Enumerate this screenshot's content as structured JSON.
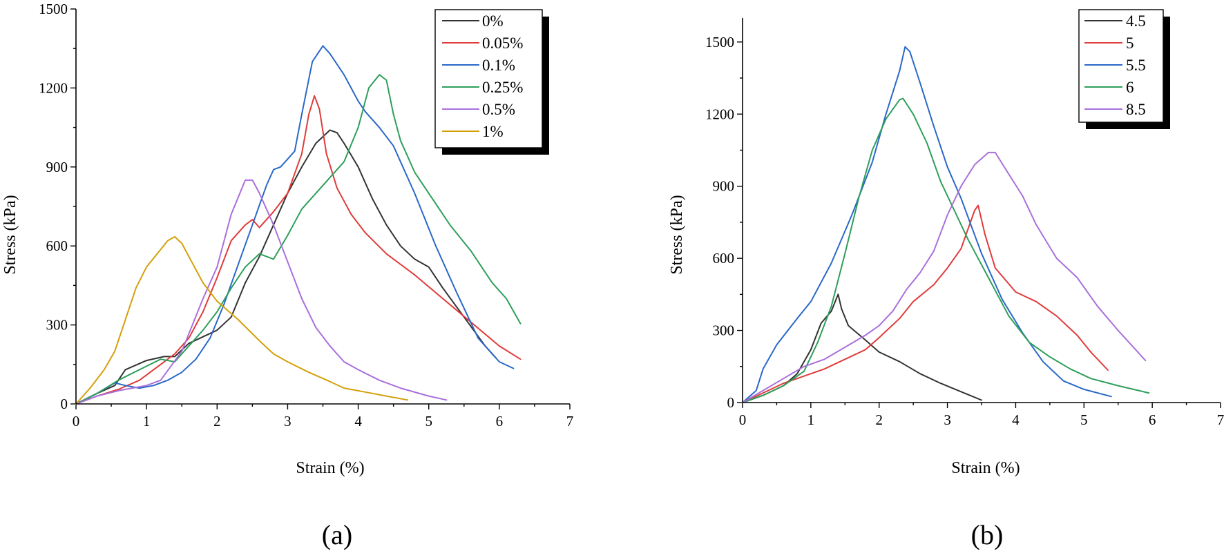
{
  "chart_data": [
    {
      "type": "line",
      "panel_label": "(a)",
      "title": "",
      "xlabel": "Strain (%)",
      "ylabel": "Stress (kPa)",
      "xlim": [
        0,
        7
      ],
      "ylim": [
        0,
        1500
      ],
      "xticks": [
        "0",
        "1",
        "2",
        "3",
        "4",
        "5",
        "6",
        "7"
      ],
      "yticks": [
        "0",
        "300",
        "600",
        "900",
        "1200",
        "1500"
      ],
      "legend_position": "top-right",
      "series": [
        {
          "name": "0%",
          "color": "#333333",
          "x": [
            0,
            0.3,
            0.55,
            0.7,
            1.0,
            1.25,
            1.4,
            1.6,
            2.0,
            2.2,
            2.4,
            2.6,
            2.8,
            3.0,
            3.2,
            3.4,
            3.6,
            3.7,
            3.8,
            4.0,
            4.2,
            4.4,
            4.6,
            4.8,
            5.0,
            5.2,
            5.5,
            5.8,
            5.95
          ],
          "y": [
            0,
            40,
            70,
            130,
            165,
            180,
            180,
            230,
            280,
            330,
            460,
            560,
            680,
            800,
            900,
            990,
            1040,
            1030,
            990,
            900,
            780,
            680,
            600,
            550,
            520,
            440,
            330,
            220,
            175
          ]
        },
        {
          "name": "0.05%",
          "color": "#e03b3b",
          "x": [
            0,
            0.3,
            0.6,
            0.9,
            1.2,
            1.4,
            1.6,
            1.8,
            2.0,
            2.2,
            2.4,
            2.5,
            2.6,
            2.8,
            3.0,
            3.2,
            3.3,
            3.38,
            3.45,
            3.55,
            3.7,
            3.9,
            4.1,
            4.4,
            4.8,
            5.2,
            5.6,
            6.0,
            6.3
          ],
          "y": [
            0,
            30,
            55,
            90,
            150,
            190,
            250,
            350,
            480,
            620,
            680,
            700,
            670,
            730,
            800,
            950,
            1100,
            1170,
            1120,
            950,
            820,
            720,
            650,
            570,
            490,
            400,
            310,
            220,
            170
          ]
        },
        {
          "name": "0.1%",
          "color": "#2a68c9",
          "x": [
            0,
            0.3,
            0.55,
            0.7,
            0.9,
            1.1,
            1.3,
            1.5,
            1.7,
            1.9,
            2.1,
            2.3,
            2.5,
            2.7,
            2.8,
            2.9,
            3.1,
            3.2,
            3.35,
            3.5,
            3.6,
            3.8,
            4.0,
            4.1,
            4.3,
            4.5,
            4.8,
            5.1,
            5.4,
            5.7,
            6.0,
            6.2
          ],
          "y": [
            0,
            40,
            80,
            70,
            60,
            70,
            90,
            120,
            170,
            250,
            380,
            530,
            680,
            830,
            890,
            900,
            960,
            1100,
            1300,
            1360,
            1330,
            1250,
            1150,
            1110,
            1050,
            980,
            800,
            600,
            420,
            250,
            160,
            135
          ]
        },
        {
          "name": "0.25%",
          "color": "#2e9e5b",
          "x": [
            0,
            0.3,
            0.6,
            0.9,
            1.2,
            1.4,
            1.6,
            1.8,
            2.0,
            2.2,
            2.4,
            2.6,
            2.8,
            3.0,
            3.2,
            3.4,
            3.6,
            3.8,
            4.0,
            4.15,
            4.3,
            4.4,
            4.5,
            4.6,
            4.8,
            5.0,
            5.3,
            5.6,
            5.9,
            6.1,
            6.3
          ],
          "y": [
            0,
            40,
            90,
            130,
            170,
            160,
            220,
            280,
            350,
            440,
            520,
            570,
            550,
            640,
            740,
            800,
            860,
            920,
            1050,
            1200,
            1250,
            1230,
            1100,
            1000,
            880,
            800,
            680,
            580,
            460,
            400,
            305
          ]
        },
        {
          "name": "0.5%",
          "color": "#a96fdb",
          "x": [
            0,
            0.3,
            0.6,
            1.0,
            1.2,
            1.5,
            1.8,
            2.0,
            2.2,
            2.4,
            2.5,
            2.6,
            2.8,
            3.0,
            3.2,
            3.4,
            3.6,
            3.8,
            4.0,
            4.3,
            4.6,
            5.0,
            5.25
          ],
          "y": [
            0,
            30,
            50,
            70,
            90,
            200,
            400,
            520,
            720,
            850,
            850,
            800,
            680,
            540,
            400,
            290,
            220,
            160,
            130,
            90,
            60,
            30,
            15
          ]
        },
        {
          "name": "1%",
          "color": "#d4a00a",
          "x": [
            0,
            0.2,
            0.4,
            0.55,
            0.7,
            0.85,
            1.0,
            1.15,
            1.3,
            1.4,
            1.5,
            1.6,
            1.8,
            2.0,
            2.3,
            2.6,
            2.8,
            3.0,
            3.3,
            3.6,
            3.8,
            4.1,
            4.4,
            4.7
          ],
          "y": [
            0,
            60,
            130,
            200,
            320,
            440,
            520,
            570,
            620,
            635,
            610,
            560,
            460,
            390,
            320,
            240,
            190,
            160,
            120,
            85,
            60,
            45,
            30,
            15
          ]
        }
      ]
    },
    {
      "type": "line",
      "panel_label": "(b)",
      "title": "",
      "xlabel": "Strain (%)",
      "ylabel": "Stress (kPa)",
      "xlim": [
        0,
        7
      ],
      "ylim": [
        0,
        1600
      ],
      "xticks": [
        "0",
        "1",
        "2",
        "3",
        "4",
        "5",
        "6",
        "7"
      ],
      "yticks": [
        "0",
        "300",
        "600",
        "900",
        "1200",
        "1500"
      ],
      "legend_position": "top-right",
      "series": [
        {
          "name": "4.5",
          "color": "#333333",
          "x": [
            0,
            0.3,
            0.6,
            0.8,
            1.0,
            1.15,
            1.3,
            1.4,
            1.45,
            1.55,
            1.8,
            2.0,
            2.3,
            2.6,
            2.9,
            3.2,
            3.5
          ],
          "y": [
            0,
            30,
            70,
            120,
            220,
            330,
            380,
            450,
            390,
            320,
            260,
            210,
            170,
            120,
            80,
            45,
            10
          ]
        },
        {
          "name": "5",
          "color": "#e03b3b",
          "x": [
            0,
            0.3,
            0.6,
            0.9,
            1.2,
            1.5,
            1.8,
            2.0,
            2.3,
            2.5,
            2.8,
            3.0,
            3.2,
            3.4,
            3.45,
            3.55,
            3.7,
            4.0,
            4.3,
            4.6,
            4.9,
            5.1,
            5.35
          ],
          "y": [
            0,
            40,
            80,
            110,
            140,
            180,
            220,
            270,
            350,
            420,
            490,
            560,
            640,
            800,
            820,
            700,
            560,
            460,
            420,
            360,
            280,
            210,
            135
          ]
        },
        {
          "name": "5.5",
          "color": "#2a68c9",
          "x": [
            0,
            0.2,
            0.3,
            0.5,
            0.8,
            1.0,
            1.3,
            1.6,
            1.9,
            2.1,
            2.3,
            2.38,
            2.45,
            2.6,
            2.8,
            3.0,
            3.2,
            3.5,
            3.8,
            4.1,
            4.4,
            4.7,
            5.0,
            5.4
          ],
          "y": [
            0,
            50,
            140,
            240,
            350,
            420,
            580,
            780,
            1000,
            1200,
            1380,
            1480,
            1460,
            1330,
            1150,
            980,
            850,
            620,
            430,
            290,
            170,
            90,
            55,
            25
          ]
        },
        {
          "name": "6",
          "color": "#2e9e5b",
          "x": [
            0,
            0.3,
            0.6,
            0.9,
            1.1,
            1.3,
            1.5,
            1.7,
            1.9,
            2.1,
            2.3,
            2.35,
            2.5,
            2.7,
            2.9,
            3.1,
            3.3,
            3.6,
            3.9,
            4.2,
            4.5,
            4.8,
            5.1,
            5.5,
            5.95
          ],
          "y": [
            0,
            30,
            70,
            130,
            250,
            400,
            620,
            850,
            1050,
            1180,
            1260,
            1265,
            1200,
            1080,
            920,
            800,
            680,
            520,
            360,
            250,
            190,
            140,
            100,
            70,
            40
          ]
        },
        {
          "name": "8.5",
          "color": "#a96fdb",
          "x": [
            0,
            0.3,
            0.6,
            0.9,
            1.2,
            1.5,
            1.8,
            2.0,
            2.2,
            2.4,
            2.6,
            2.8,
            3.0,
            3.2,
            3.4,
            3.6,
            3.7,
            3.9,
            4.1,
            4.3,
            4.6,
            4.9,
            5.2,
            5.5,
            5.9
          ],
          "y": [
            0,
            50,
            100,
            150,
            180,
            230,
            280,
            320,
            380,
            470,
            540,
            630,
            780,
            900,
            990,
            1040,
            1040,
            950,
            860,
            740,
            600,
            520,
            400,
            300,
            175
          ]
        }
      ]
    }
  ]
}
